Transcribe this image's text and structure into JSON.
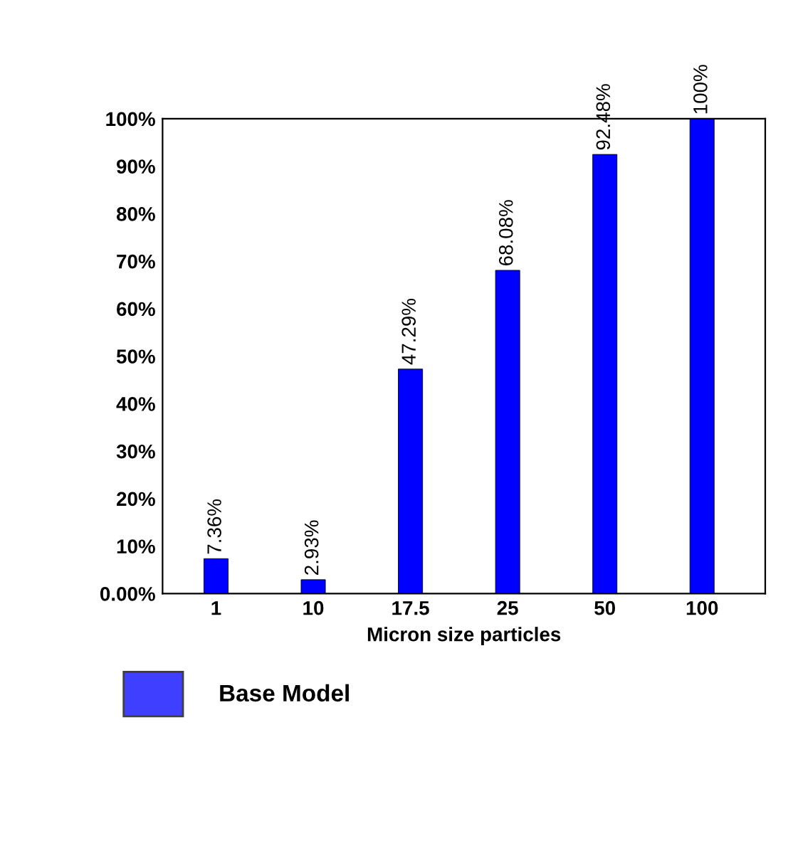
{
  "chart_data": {
    "type": "bar",
    "xlabel": "Micron size particles",
    "categories": [
      "1",
      "10",
      "17.5",
      "25",
      "50",
      "100"
    ],
    "series": [
      {
        "name": "Base Model",
        "color": "#0000ff",
        "values": [
          7.36,
          2.93,
          47.29,
          68.08,
          92.48,
          100
        ],
        "value_labels": [
          "7.36%",
          "2.93%",
          "47.29%",
          "68.08%",
          "92.48%",
          "100%"
        ]
      }
    ],
    "ylim": [
      0,
      100
    ],
    "yticks": [
      {
        "value": 0,
        "label": "0.00%"
      },
      {
        "value": 10,
        "label": "10%"
      },
      {
        "value": 20,
        "label": "20%"
      },
      {
        "value": 30,
        "label": "30%"
      },
      {
        "value": 40,
        "label": "40%"
      },
      {
        "value": 50,
        "label": "50%"
      },
      {
        "value": 60,
        "label": "60%"
      },
      {
        "value": 70,
        "label": "70%"
      },
      {
        "value": 80,
        "label": "80%"
      },
      {
        "value": 90,
        "label": "90%"
      },
      {
        "value": 100,
        "label": "100%"
      }
    ],
    "grid": false,
    "legend": "bottom left"
  }
}
